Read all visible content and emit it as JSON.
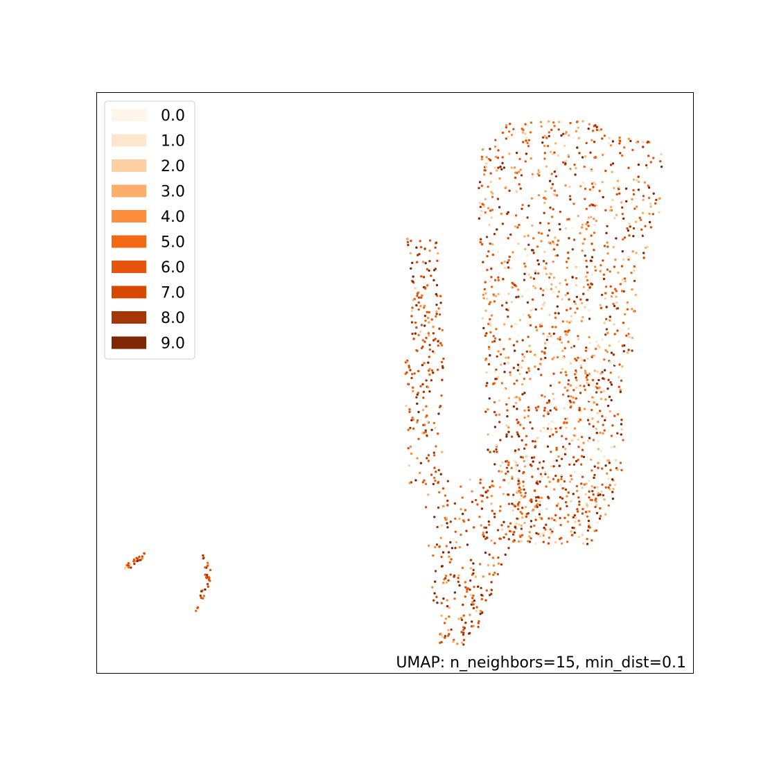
{
  "chart_data": {
    "type": "scatter",
    "title": "",
    "xlabel": "",
    "ylabel": "",
    "xticks": false,
    "yticks": false,
    "grid": false,
    "colormap": "Oranges",
    "legend": {
      "placement": "top-left",
      "entries": [
        {
          "label": "0.0",
          "color": "#fff5eb"
        },
        {
          "label": "1.0",
          "color": "#fee6ce"
        },
        {
          "label": "2.0",
          "color": "#fdd0a2"
        },
        {
          "label": "3.0",
          "color": "#fdae6b"
        },
        {
          "label": "4.0",
          "color": "#fd8d3c"
        },
        {
          "label": "5.0",
          "color": "#f16913"
        },
        {
          "label": "6.0",
          "color": "#e6550d"
        },
        {
          "label": "7.0",
          "color": "#d94801"
        },
        {
          "label": "8.0",
          "color": "#a63603"
        },
        {
          "label": "9.0",
          "color": "#7f2704"
        }
      ]
    },
    "annotation": {
      "text": "UMAP: n_neighbors=15, min_dist=0.1",
      "placement": "bottom-right"
    },
    "point_clusters": [
      {
        "region": "main body",
        "approx_points": 1500,
        "value_mix": "all classes 0.0–9.0"
      },
      {
        "region": "left arm of main body",
        "approx_points": 220,
        "value_mix": "mostly 5.0–9.0"
      },
      {
        "region": "lower tail of main body",
        "approx_points": 260,
        "value_mix": "mostly 5.0–9.0"
      },
      {
        "region": "small isolated cluster (far left)",
        "approx_points": 25,
        "value_mix": "mostly 5.0–9.0"
      },
      {
        "region": "small isolated cluster (vertical strip)",
        "approx_points": 30,
        "value_mix": "mostly 6.0–9.0"
      }
    ]
  }
}
